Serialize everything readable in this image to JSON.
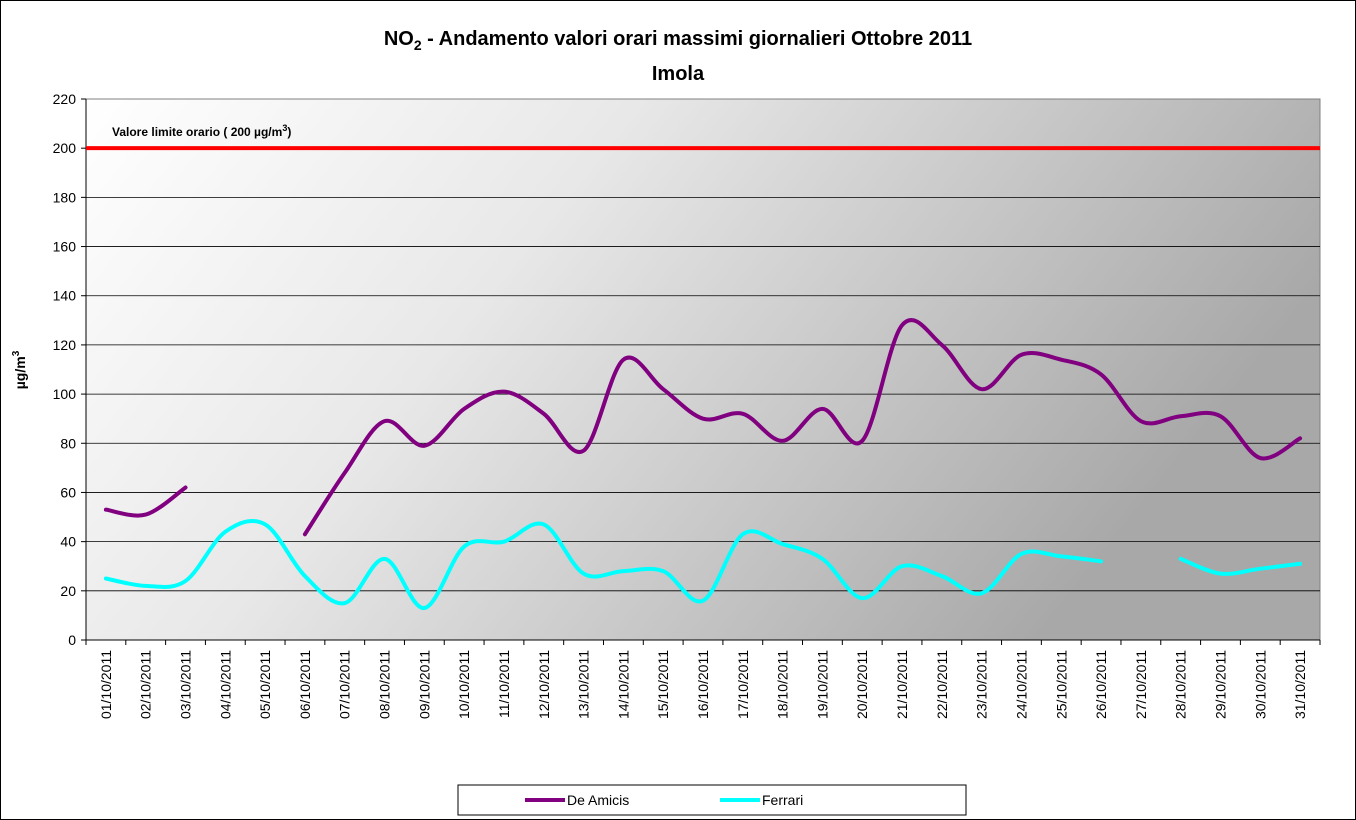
{
  "chart_data": {
    "type": "line",
    "title": [
      "NO",
      "2",
      " - Andamento valori orari massimi giornalieri Ottobre 2011"
    ],
    "subtitle": "Imola",
    "y_label": [
      "µg/m",
      "3"
    ],
    "categories": [
      "01/10/2011",
      "02/10/2011",
      "03/10/2011",
      "04/10/2011",
      "05/10/2011",
      "06/10/2011",
      "07/10/2011",
      "08/10/2011",
      "09/10/2011",
      "10/10/2011",
      "11/10/2011",
      "12/10/2011",
      "13/10/2011",
      "14/10/2011",
      "15/10/2011",
      "16/10/2011",
      "17/10/2011",
      "18/10/2011",
      "19/10/2011",
      "20/10/2011",
      "21/10/2011",
      "22/10/2011",
      "23/10/2011",
      "24/10/2011",
      "25/10/2011",
      "26/10/2011",
      "27/10/2011",
      "28/10/2011",
      "29/10/2011",
      "30/10/2011",
      "31/10/2011"
    ],
    "series": [
      {
        "name": "De Amicis",
        "color": "#800080",
        "values": [
          53,
          51,
          62,
          null,
          null,
          43,
          68,
          89,
          79,
          94,
          101,
          92,
          77,
          114,
          102,
          90,
          92,
          81,
          94,
          81,
          128,
          120,
          102,
          116,
          114,
          108,
          89,
          91,
          91,
          74,
          82
        ]
      },
      {
        "name": "Ferrari",
        "color": "#00ffff",
        "values": [
          25,
          22,
          24,
          44,
          47,
          26,
          15,
          33,
          13,
          38,
          40,
          47,
          27,
          28,
          28,
          16,
          43,
          39,
          33,
          17,
          30,
          26,
          19,
          35,
          34,
          32,
          null,
          33,
          27,
          29,
          31
        ]
      }
    ],
    "limit": {
      "value": 200,
      "color": "#ff0000",
      "label": [
        "Valore limite orario ( 200 µg/m",
        "3",
        ")"
      ]
    },
    "ylim": [
      0,
      220
    ],
    "yticks": [
      0,
      20,
      40,
      60,
      80,
      100,
      120,
      140,
      160,
      180,
      200,
      220
    ],
    "grid": true,
    "legend": "bottom"
  }
}
